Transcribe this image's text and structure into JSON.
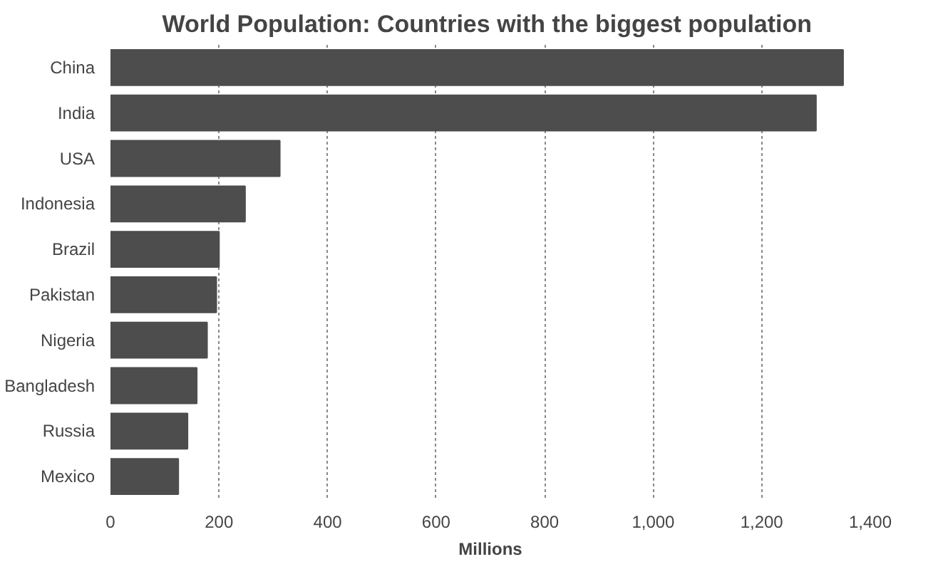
{
  "chart_data": {
    "type": "bar",
    "orientation": "horizontal",
    "title": "World Population:  Countries with the biggest population",
    "xlabel": "Millions",
    "categories": [
      "China",
      "India",
      "USA",
      "Indonesia",
      "Brazil",
      "Pakistan",
      "Nigeria",
      "Bangladesh",
      "Russia",
      "Mexico"
    ],
    "values": [
      1350,
      1300,
      312,
      248,
      200,
      195,
      178,
      159,
      142,
      125
    ],
    "color": "#4d4d4d",
    "xlim": [
      0,
      1400
    ],
    "xticks": [
      0,
      200,
      400,
      600,
      800,
      {
        "value": 1000,
        "label": "1,000"
      },
      {
        "value": 1200,
        "label": "1,200"
      },
      {
        "value": 1400,
        "label": "1,400"
      }
    ],
    "grid": "x"
  }
}
